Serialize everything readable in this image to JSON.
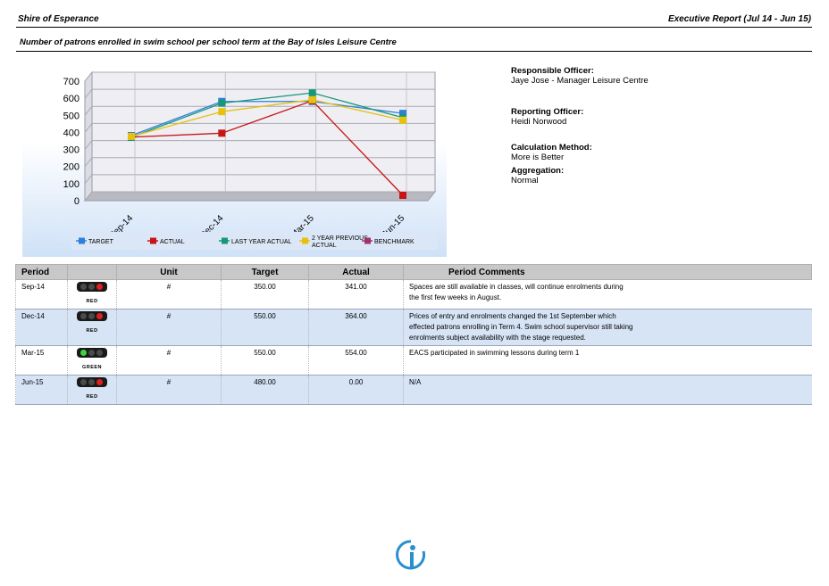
{
  "header": {
    "org": "Shire of Esperance",
    "report": "Executive Report (Jul 14 - Jun 15)"
  },
  "measure_title": "Number of patrons enrolled in swim school per school term at the Bay of Isles Leisure Centre",
  "info": {
    "responsible_label": "Responsible Officer:",
    "responsible_value": "Jaye Jose - Manager Leisure Centre",
    "reporting_label": "Reporting Officer:",
    "reporting_value": "Heidi Norwood",
    "calc_label": "Calculation Method:",
    "calc_value": "More is Better",
    "agg_label": "Aggregation:",
    "agg_value": "Normal"
  },
  "chart_data": {
    "type": "line",
    "categories": [
      "Sep-14",
      "Dec-14",
      "Mar-15",
      "Jun-15"
    ],
    "ylim": [
      0,
      700
    ],
    "yticks": [
      0,
      100,
      200,
      300,
      400,
      500,
      600,
      700
    ],
    "series": [
      {
        "name": "TARGET",
        "color": "#2f7fd8",
        "values": [
          350,
          550,
          550,
          480
        ]
      },
      {
        "name": "ACTUAL",
        "color": "#c81414",
        "values": [
          341,
          364,
          554,
          0
        ]
      },
      {
        "name": "LAST YEAR ACTUAL",
        "color": "#17977a",
        "values": [
          340,
          540,
          600,
          455
        ]
      },
      {
        "name": "2 YEAR PREVIOUS ACTUAL",
        "color": "#e6c10e",
        "values": [
          345,
          490,
          560,
          440
        ]
      },
      {
        "name": "BENCHMARK",
        "color": "#a0336f",
        "values": [
          null,
          null,
          null,
          null
        ]
      }
    ],
    "legend": "bottom"
  },
  "table": {
    "headers": [
      "Period",
      "",
      "Unit",
      "Target",
      "Actual",
      "Period Comments"
    ],
    "rows": [
      {
        "period": "Sep-14",
        "light": "red",
        "light_label": "RED",
        "unit": "#",
        "target": "350.00",
        "actual": "341.00",
        "comments": "Spaces are still available in classes, will continue enrolments during the first few weeks in August."
      },
      {
        "period": "Dec-14",
        "light": "red",
        "light_label": "RED",
        "unit": "#",
        "target": "550.00",
        "actual": "364.00",
        "comments": "Prices of entry and enrolments changed the 1st September which effected patrons enrolling in Term 4. Swim school supervisor still taking enrolments subject availability with the stage requested."
      },
      {
        "period": "Mar-15",
        "light": "green",
        "light_label": "GREEN",
        "unit": "#",
        "target": "550.00",
        "actual": "554.00",
        "comments": "EACS participated in swimming lessons during term 1"
      },
      {
        "period": "Jun-15",
        "light": "red",
        "light_label": "RED",
        "unit": "#",
        "target": "480.00",
        "actual": "0.00",
        "comments": "N/A"
      }
    ]
  },
  "colors": {
    "red_light": "#e02020",
    "green_light": "#3fd43f",
    "header_bg": "#c8c8c8",
    "alt_row": "#d6e4f5"
  }
}
